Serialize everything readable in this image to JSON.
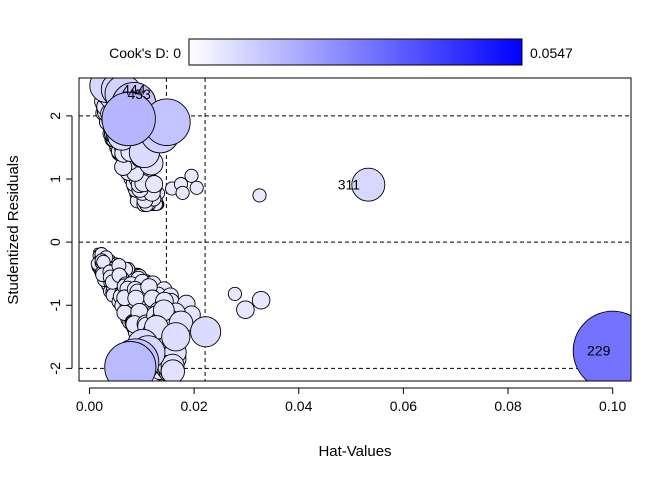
{
  "chart_data": {
    "type": "scatter",
    "title": "",
    "xlabel": "Hat-Values",
    "ylabel": "Studentized Residuals",
    "xlim": [
      -0.002,
      0.1035
    ],
    "ylim": [
      -2.2,
      2.6
    ],
    "x_ticks": [
      0.0,
      0.02,
      0.04,
      0.06,
      0.08,
      0.1
    ],
    "x_tick_labels": [
      "0.00",
      "0.02",
      "0.04",
      "0.06",
      "0.08",
      "0.10"
    ],
    "y_ticks": [
      -2,
      -1,
      0,
      1,
      2
    ],
    "y_tick_labels": [
      "-2",
      "-1",
      "0",
      "1",
      "2"
    ],
    "reference_lines": {
      "horizontal": [
        -2,
        0,
        2
      ],
      "vertical": [
        0.0147,
        0.0221
      ]
    },
    "colorbar": {
      "label": "Cook's D: 0",
      "min": 0,
      "max": 0.0547,
      "max_label": "0.0547",
      "color_low": "#ffffff",
      "color_high": "#0000ff"
    },
    "point_fill_high": "#0000ff",
    "labeled_points": [
      {
        "label": "311",
        "x": 0.0533,
        "y": 0.91,
        "cooksd": 0.0085
      },
      {
        "label": "229",
        "x": 0.1,
        "y": -1.72,
        "cooksd": 0.0547
      },
      {
        "label": "444",
        "x": 0.0055,
        "y": 2.42,
        "cooksd": 0.009
      },
      {
        "label": "453",
        "x": 0.0065,
        "y": 2.35,
        "cooksd": 0.011
      }
    ],
    "points": [
      {
        "x": 0.0033,
        "y": 2.48,
        "cooksd": 0.009
      },
      {
        "x": 0.0085,
        "y": 2.18,
        "cooksd": 0.016
      },
      {
        "x": 0.0075,
        "y": 1.95,
        "cooksd": 0.024
      },
      {
        "x": 0.0148,
        "y": 1.9,
        "cooksd": 0.018
      },
      {
        "x": 0.0135,
        "y": 1.72,
        "cooksd": 0.012
      },
      {
        "x": 0.0105,
        "y": 1.42,
        "cooksd": 0.007
      },
      {
        "x": 0.0062,
        "y": 1.68,
        "cooksd": 0.006
      },
      {
        "x": 0.0118,
        "y": 1.25,
        "cooksd": 0.004
      },
      {
        "x": 0.0158,
        "y": 0.85,
        "cooksd": 0.001
      },
      {
        "x": 0.0175,
        "y": 0.92,
        "cooksd": 0.001
      },
      {
        "x": 0.0195,
        "y": 1.05,
        "cooksd": 0.001
      },
      {
        "x": 0.0178,
        "y": 0.78,
        "cooksd": 0.001
      },
      {
        "x": 0.0205,
        "y": 0.86,
        "cooksd": 0.001
      },
      {
        "x": 0.0325,
        "y": 0.74,
        "cooksd": 0.001
      },
      {
        "x": 0.0278,
        "y": -0.82,
        "cooksd": 0.001
      },
      {
        "x": 0.0298,
        "y": -1.07,
        "cooksd": 0.002
      },
      {
        "x": 0.0328,
        "y": -0.92,
        "cooksd": 0.002
      },
      {
        "x": 0.0222,
        "y": -1.42,
        "cooksd": 0.007
      },
      {
        "x": 0.0175,
        "y": -1.28,
        "cooksd": 0.004
      },
      {
        "x": 0.0165,
        "y": -1.5,
        "cooksd": 0.006
      },
      {
        "x": 0.0112,
        "y": -1.75,
        "cooksd": 0.009
      },
      {
        "x": 0.0088,
        "y": -1.9,
        "cooksd": 0.018
      },
      {
        "x": 0.0078,
        "y": -1.98,
        "cooksd": 0.022
      },
      {
        "x": 0.0102,
        "y": -1.62,
        "cooksd": 0.007
      },
      {
        "x": 0.0142,
        "y": -1.08,
        "cooksd": 0.003
      },
      {
        "x": 0.0155,
        "y": -0.95,
        "cooksd": 0.002
      },
      {
        "x": 0.0185,
        "y": -0.98,
        "cooksd": 0.002
      },
      {
        "x": 0.0195,
        "y": -1.15,
        "cooksd": 0.002
      },
      {
        "x": 0.0128,
        "y": -1.35,
        "cooksd": 0.004
      }
    ]
  }
}
